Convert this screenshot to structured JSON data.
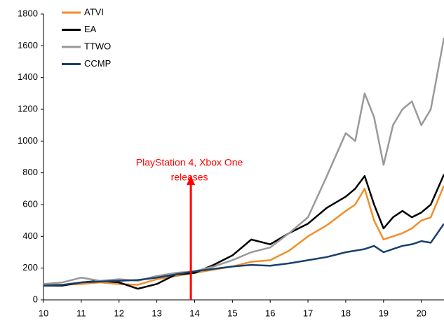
{
  "chart_data": {
    "type": "line",
    "x": [
      10,
      10.5,
      11,
      11.5,
      12,
      12.5,
      13,
      13.5,
      14,
      14.5,
      15,
      15.5,
      16,
      16.5,
      17,
      17.5,
      18,
      18.25,
      18.5,
      18.75,
      19,
      19.25,
      19.5,
      19.75,
      20,
      20.25,
      20.6
    ],
    "series": [
      {
        "name": "ATVI",
        "color": "#f28e2b",
        "values": [
          100,
          95,
          100,
          110,
          100,
          95,
          130,
          150,
          170,
          190,
          210,
          240,
          250,
          310,
          400,
          470,
          560,
          600,
          700,
          500,
          380,
          400,
          420,
          450,
          500,
          520,
          720
        ]
      },
      {
        "name": "EA",
        "color": "#000000",
        "values": [
          90,
          90,
          110,
          120,
          110,
          70,
          100,
          160,
          170,
          220,
          280,
          380,
          350,
          420,
          480,
          580,
          650,
          700,
          780,
          600,
          450,
          520,
          560,
          520,
          550,
          600,
          790
        ]
      },
      {
        "name": "TTWO",
        "color": "#999999",
        "values": [
          100,
          110,
          140,
          120,
          130,
          120,
          150,
          170,
          180,
          210,
          250,
          300,
          330,
          420,
          520,
          780,
          1050,
          1000,
          1300,
          1150,
          850,
          1100,
          1200,
          1250,
          1100,
          1200,
          1650
        ]
      },
      {
        "name": "CCMP",
        "color": "#17406d",
        "values": [
          90,
          95,
          110,
          115,
          120,
          125,
          140,
          160,
          180,
          195,
          210,
          220,
          215,
          230,
          250,
          270,
          300,
          310,
          320,
          340,
          300,
          320,
          340,
          350,
          370,
          360,
          480
        ]
      }
    ],
    "xlim": [
      10,
      20.6
    ],
    "xticks": [
      10,
      11,
      12,
      13,
      14,
      15,
      16,
      17,
      18,
      19,
      20
    ],
    "ylim": [
      0,
      1800
    ],
    "yticks": [
      0,
      200,
      400,
      600,
      800,
      1000,
      1200,
      1400,
      1600,
      1800
    ],
    "grid": false,
    "legend": "top-left",
    "annotation": {
      "text": [
        "PlayStation 4, Xbox One",
        "releases"
      ],
      "x": 13.9,
      "color": "#ff0000"
    }
  }
}
